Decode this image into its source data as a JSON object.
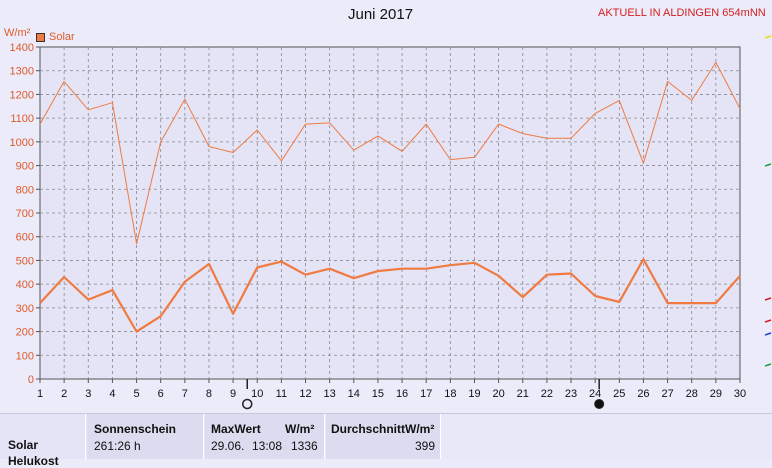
{
  "header": {
    "title": "Juni 2017",
    "location": "AKTUELL IN ALDINGEN 654mNN",
    "unit": "W/m²"
  },
  "legend": {
    "label": "Solar"
  },
  "colors": {
    "series": "#f07a40",
    "max_line": "#f07a40",
    "text_red": "#d42020"
  },
  "chart_data": {
    "type": "line",
    "title": "Juni 2017",
    "ylabel": "W/m²",
    "x": [
      1,
      2,
      3,
      4,
      5,
      6,
      7,
      8,
      9,
      10,
      11,
      12,
      13,
      14,
      15,
      16,
      17,
      18,
      19,
      20,
      21,
      22,
      23,
      24,
      25,
      26,
      27,
      28,
      29,
      30
    ],
    "ylim": [
      0,
      1400
    ],
    "yticks": [
      0,
      100,
      200,
      300,
      400,
      500,
      600,
      700,
      800,
      900,
      1000,
      1100,
      1200,
      1300,
      1400
    ],
    "grid": true,
    "legend_position": "top-left",
    "series": [
      {
        "name": "Solar",
        "style": "thick",
        "values": [
          320,
          430,
          335,
          375,
          200,
          265,
          410,
          485,
          275,
          470,
          495,
          440,
          465,
          425,
          455,
          465,
          465,
          480,
          490,
          435,
          345,
          440,
          445,
          350,
          325,
          505,
          320,
          320,
          320,
          435
        ]
      },
      {
        "style": "thin",
        "values": [
          1075,
          1255,
          1135,
          1165,
          570,
          1000,
          1180,
          980,
          955,
          1050,
          920,
          1075,
          1080,
          965,
          1025,
          960,
          1075,
          925,
          935,
          1075,
          1035,
          1015,
          1015,
          1120,
          1175,
          910,
          1255,
          1175,
          1335,
          1140
        ]
      }
    ]
  },
  "footer": {
    "row_label": "Solar",
    "row_label_2": "Helukost",
    "sunshine": {
      "label": "Sonnenschein",
      "value": "261:26 h"
    },
    "max": {
      "label": "MaxWert",
      "unit": "W/m²",
      "date": "29.06.",
      "time": "13:08",
      "value": "1336"
    },
    "avg": {
      "label": "DurchschnittW/m²",
      "value": "399"
    }
  }
}
